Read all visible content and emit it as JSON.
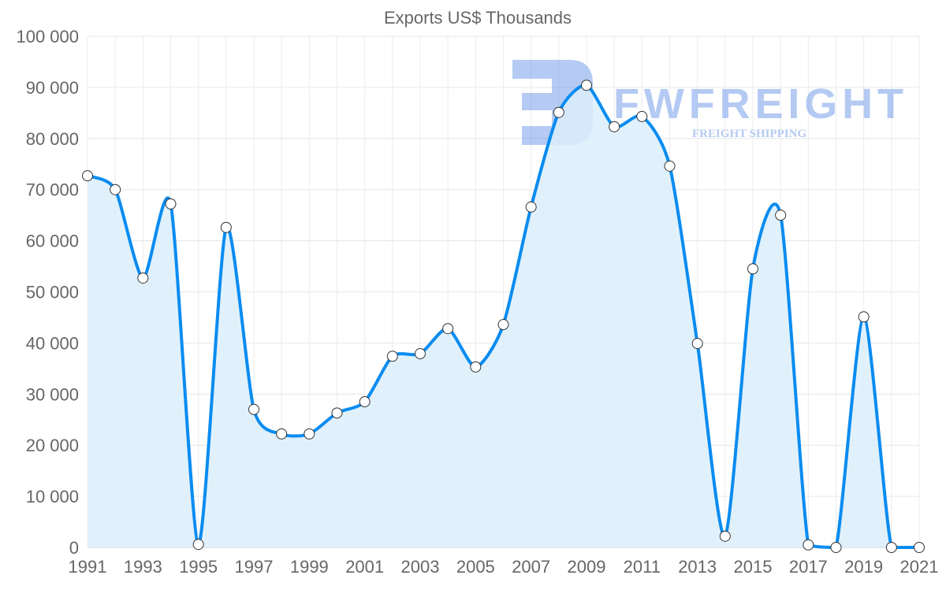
{
  "chart_data": {
    "type": "area",
    "title": "Exports US$ Thousands",
    "xlabel": "",
    "ylabel": "",
    "ylim": [
      0,
      100000
    ],
    "ytick_step": 10000,
    "y_tick_labels": [
      "0",
      "10 000",
      "20 000",
      "30 000",
      "40 000",
      "50 000",
      "60 000",
      "70 000",
      "80 000",
      "90 000",
      "100 000"
    ],
    "x_tick_labels": [
      "1991",
      "1993",
      "1995",
      "1997",
      "1999",
      "2001",
      "2003",
      "2005",
      "2007",
      "2009",
      "2011",
      "2013",
      "2015",
      "2017",
      "2019",
      "2021"
    ],
    "grid": true,
    "legend": "none",
    "x": [
      1991,
      1992,
      1993,
      1994,
      1995,
      1996,
      1997,
      1998,
      1999,
      2000,
      2001,
      2002,
      2003,
      2004,
      2005,
      2006,
      2007,
      2008,
      2009,
      2010,
      2011,
      2012,
      2013,
      2014,
      2015,
      2016,
      2017,
      2018,
      2019,
      2020,
      2021
    ],
    "series": [
      {
        "name": "Exports",
        "color": "#0a8cf0",
        "fill": "#dbeefc",
        "values": [
          72700,
          70000,
          52700,
          67200,
          600,
          62600,
          27000,
          22200,
          22200,
          26300,
          28500,
          37400,
          37900,
          42800,
          35300,
          43600,
          66600,
          85100,
          90400,
          82300,
          84300,
          74600,
          39900,
          2200,
          54500,
          65000,
          500,
          0,
          45100,
          0,
          0
        ]
      }
    ]
  },
  "watermark": {
    "brand": "FWFREIGHT",
    "tagline": "FREIGHT SHIPPING"
  }
}
